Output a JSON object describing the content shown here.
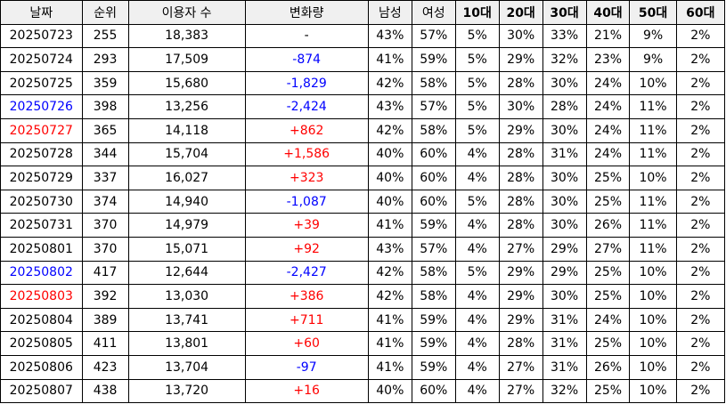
{
  "headers": [
    "날짜",
    "순위",
    "이용자 수",
    "변화량",
    "남성",
    "여성",
    "10대",
    "20대",
    "30대",
    "40대",
    "50대",
    "60대"
  ],
  "colors": {
    "red": "#ff0000",
    "blue": "#0000ff",
    "black": "#000000"
  },
  "rows": [
    {
      "date": "20250723",
      "date_color": "black",
      "rank": "255",
      "users": "18,383",
      "change": "-",
      "change_color": "black",
      "male": "43%",
      "female": "57%",
      "a10": "5%",
      "a20": "30%",
      "a30": "33%",
      "a40": "21%",
      "a50": "9%",
      "a60": "2%"
    },
    {
      "date": "20250724",
      "date_color": "black",
      "rank": "293",
      "users": "17,509",
      "change": "-874",
      "change_color": "blue",
      "male": "41%",
      "female": "59%",
      "a10": "5%",
      "a20": "29%",
      "a30": "32%",
      "a40": "23%",
      "a50": "9%",
      "a60": "2%"
    },
    {
      "date": "20250725",
      "date_color": "black",
      "rank": "359",
      "users": "15,680",
      "change": "-1,829",
      "change_color": "blue",
      "male": "42%",
      "female": "58%",
      "a10": "5%",
      "a20": "28%",
      "a30": "30%",
      "a40": "24%",
      "a50": "10%",
      "a60": "2%"
    },
    {
      "date": "20250726",
      "date_color": "blue",
      "rank": "398",
      "users": "13,256",
      "change": "-2,424",
      "change_color": "blue",
      "male": "43%",
      "female": "57%",
      "a10": "5%",
      "a20": "30%",
      "a30": "28%",
      "a40": "24%",
      "a50": "11%",
      "a60": "2%"
    },
    {
      "date": "20250727",
      "date_color": "red",
      "rank": "365",
      "users": "14,118",
      "change": "+862",
      "change_color": "red",
      "male": "42%",
      "female": "58%",
      "a10": "5%",
      "a20": "29%",
      "a30": "30%",
      "a40": "24%",
      "a50": "11%",
      "a60": "2%"
    },
    {
      "date": "20250728",
      "date_color": "black",
      "rank": "344",
      "users": "15,704",
      "change": "+1,586",
      "change_color": "red",
      "male": "40%",
      "female": "60%",
      "a10": "4%",
      "a20": "28%",
      "a30": "31%",
      "a40": "24%",
      "a50": "11%",
      "a60": "2%"
    },
    {
      "date": "20250729",
      "date_color": "black",
      "rank": "337",
      "users": "16,027",
      "change": "+323",
      "change_color": "red",
      "male": "40%",
      "female": "60%",
      "a10": "4%",
      "a20": "28%",
      "a30": "30%",
      "a40": "25%",
      "a50": "10%",
      "a60": "2%"
    },
    {
      "date": "20250730",
      "date_color": "black",
      "rank": "374",
      "users": "14,940",
      "change": "-1,087",
      "change_color": "blue",
      "male": "40%",
      "female": "60%",
      "a10": "5%",
      "a20": "28%",
      "a30": "30%",
      "a40": "25%",
      "a50": "11%",
      "a60": "2%"
    },
    {
      "date": "20250731",
      "date_color": "black",
      "rank": "370",
      "users": "14,979",
      "change": "+39",
      "change_color": "red",
      "male": "41%",
      "female": "59%",
      "a10": "4%",
      "a20": "28%",
      "a30": "30%",
      "a40": "26%",
      "a50": "11%",
      "a60": "2%"
    },
    {
      "date": "20250801",
      "date_color": "black",
      "rank": "370",
      "users": "15,071",
      "change": "+92",
      "change_color": "red",
      "male": "43%",
      "female": "57%",
      "a10": "4%",
      "a20": "27%",
      "a30": "29%",
      "a40": "27%",
      "a50": "11%",
      "a60": "2%"
    },
    {
      "date": "20250802",
      "date_color": "blue",
      "rank": "417",
      "users": "12,644",
      "change": "-2,427",
      "change_color": "blue",
      "male": "42%",
      "female": "58%",
      "a10": "5%",
      "a20": "29%",
      "a30": "29%",
      "a40": "25%",
      "a50": "10%",
      "a60": "2%"
    },
    {
      "date": "20250803",
      "date_color": "red",
      "rank": "392",
      "users": "13,030",
      "change": "+386",
      "change_color": "red",
      "male": "42%",
      "female": "58%",
      "a10": "4%",
      "a20": "29%",
      "a30": "30%",
      "a40": "25%",
      "a50": "10%",
      "a60": "2%"
    },
    {
      "date": "20250804",
      "date_color": "black",
      "rank": "389",
      "users": "13,741",
      "change": "+711",
      "change_color": "red",
      "male": "41%",
      "female": "59%",
      "a10": "4%",
      "a20": "29%",
      "a30": "31%",
      "a40": "24%",
      "a50": "10%",
      "a60": "2%"
    },
    {
      "date": "20250805",
      "date_color": "black",
      "rank": "411",
      "users": "13,801",
      "change": "+60",
      "change_color": "red",
      "male": "41%",
      "female": "59%",
      "a10": "4%",
      "a20": "28%",
      "a30": "31%",
      "a40": "25%",
      "a50": "10%",
      "a60": "2%"
    },
    {
      "date": "20250806",
      "date_color": "black",
      "rank": "423",
      "users": "13,704",
      "change": "-97",
      "change_color": "blue",
      "male": "41%",
      "female": "59%",
      "a10": "4%",
      "a20": "27%",
      "a30": "31%",
      "a40": "26%",
      "a50": "10%",
      "a60": "2%"
    },
    {
      "date": "20250807",
      "date_color": "black",
      "rank": "438",
      "users": "13,720",
      "change": "+16",
      "change_color": "red",
      "male": "40%",
      "female": "60%",
      "a10": "4%",
      "a20": "27%",
      "a30": "32%",
      "a40": "25%",
      "a50": "10%",
      "a60": "2%"
    }
  ]
}
